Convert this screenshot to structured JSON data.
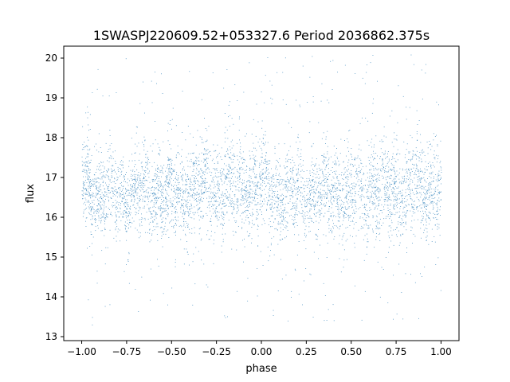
{
  "chart_data": {
    "type": "scatter",
    "title": "1SWASPJ220609.52+053327.6 Period 2036862.375s",
    "xlabel": "phase",
    "ylabel": "flux",
    "xlim": [
      -1.1,
      1.1
    ],
    "ylim": [
      12.9,
      20.3
    ],
    "xticks": [
      -1.0,
      -0.75,
      -0.5,
      -0.25,
      0.0,
      0.25,
      0.5,
      0.75,
      1.0
    ],
    "xtick_labels": [
      "−1.00",
      "−0.75",
      "−0.50",
      "−0.25",
      "0.00",
      "0.25",
      "0.50",
      "0.75",
      "1.00"
    ],
    "yticks": [
      13,
      14,
      15,
      16,
      17,
      18,
      19,
      20
    ],
    "ytick_labels": [
      "13",
      "14",
      "15",
      "16",
      "17",
      "18",
      "19",
      "20"
    ],
    "grid": false,
    "legend": "none",
    "marker_color": "#1f77b4",
    "description_of_points": "phase-folded light curve repeated over two cycles (-1 to 1); dense band between flux ~15.5 and ~17.8 centered near 16.7, with sparse outliers from ~13.3 to ~20.1",
    "band_profile": [
      {
        "x": -1.0,
        "center": 16.9,
        "low": 15.6,
        "high": 18.2
      },
      {
        "x": -0.9,
        "center": 16.6,
        "low": 15.5,
        "high": 17.9
      },
      {
        "x": -0.75,
        "center": 16.6,
        "low": 15.3,
        "high": 17.6
      },
      {
        "x": -0.6,
        "center": 16.7,
        "low": 15.3,
        "high": 17.8
      },
      {
        "x": -0.5,
        "center": 16.6,
        "low": 15.2,
        "high": 17.9
      },
      {
        "x": -0.4,
        "center": 16.7,
        "low": 15.4,
        "high": 18.0
      },
      {
        "x": -0.25,
        "center": 16.8,
        "low": 15.6,
        "high": 18.3
      },
      {
        "x": -0.1,
        "center": 16.7,
        "low": 15.4,
        "high": 18.0
      },
      {
        "x": 0.0,
        "center": 16.8,
        "low": 15.5,
        "high": 18.2
      },
      {
        "x": 0.1,
        "center": 16.6,
        "low": 15.5,
        "high": 17.9
      },
      {
        "x": 0.25,
        "center": 16.6,
        "low": 15.3,
        "high": 17.6
      },
      {
        "x": 0.4,
        "center": 16.7,
        "low": 15.3,
        "high": 17.8
      },
      {
        "x": 0.5,
        "center": 16.6,
        "low": 15.2,
        "high": 17.9
      },
      {
        "x": 0.6,
        "center": 16.7,
        "low": 15.4,
        "high": 18.0
      },
      {
        "x": 0.75,
        "center": 16.8,
        "low": 15.6,
        "high": 18.3
      },
      {
        "x": 0.9,
        "center": 16.7,
        "low": 15.4,
        "high": 18.0
      },
      {
        "x": 1.0,
        "center": 16.8,
        "low": 15.5,
        "high": 18.2
      }
    ],
    "outlier_range": [
      13.3,
      20.1
    ]
  }
}
